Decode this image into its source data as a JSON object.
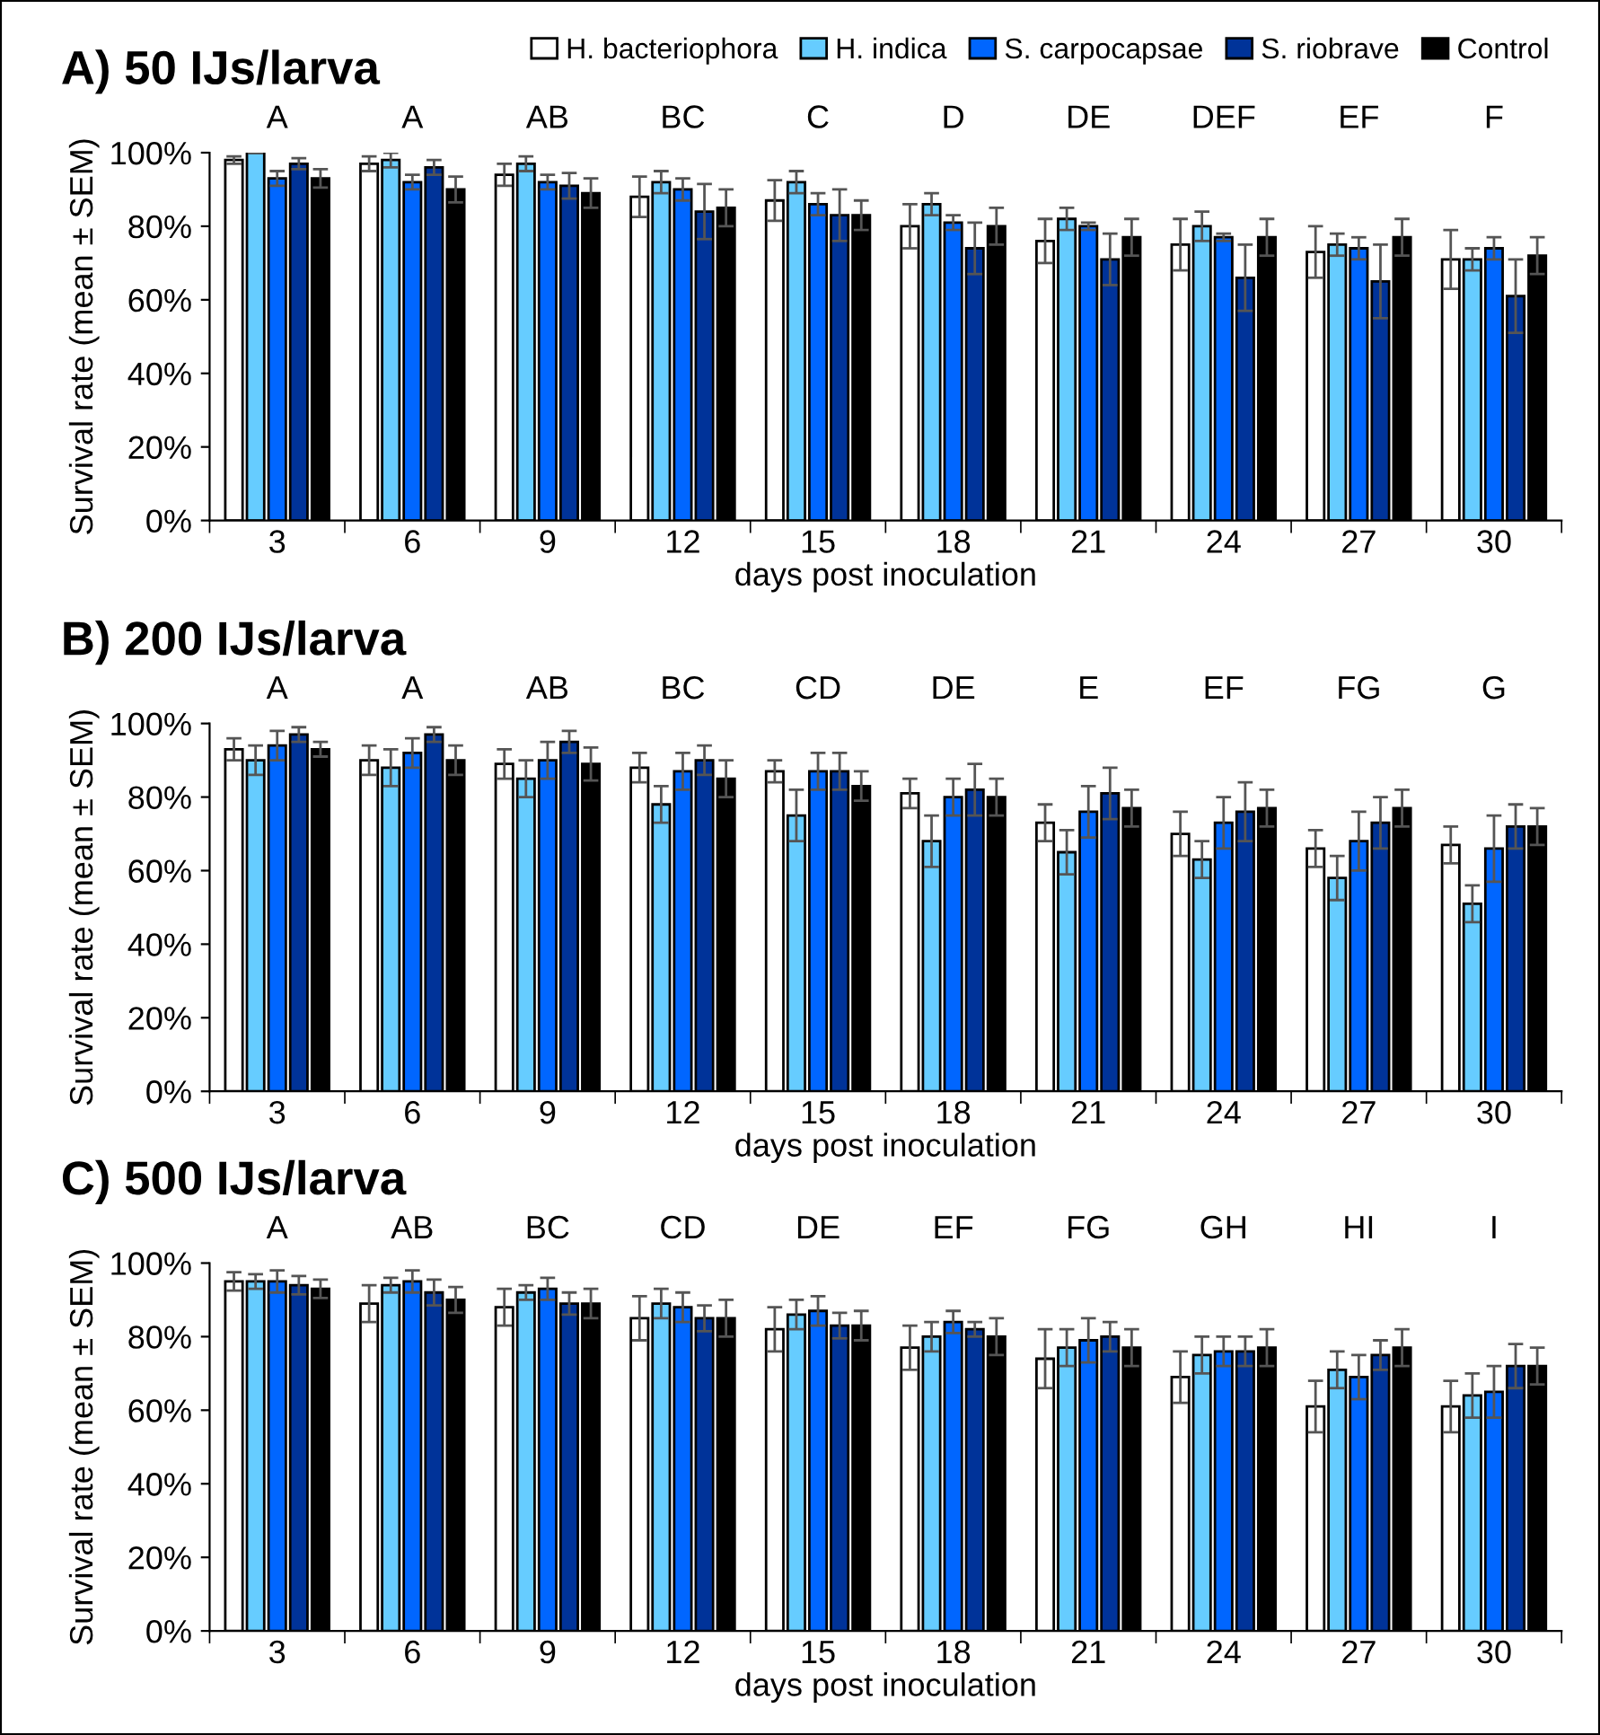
{
  "chart_data": [
    {
      "type": "bar",
      "title": "A) 50 IJs/larva",
      "xlabel": "days post inoculation",
      "ylabel": "Survival rate (mean ± SEM)",
      "legend": "top right",
      "grid": false,
      "categories": [
        "3",
        "6",
        "9",
        "12",
        "15",
        "18",
        "21",
        "24",
        "27",
        "30"
      ],
      "ylim": [
        0,
        100
      ],
      "yticks": [
        {
          "value": 0,
          "label": "0%"
        },
        {
          "value": 20,
          "label": "20%"
        },
        {
          "value": 40,
          "label": "40%"
        },
        {
          "value": 60,
          "label": "60%"
        },
        {
          "value": 80,
          "label": "80%"
        },
        {
          "value": 100,
          "label": "100%"
        }
      ],
      "annotations": [
        "A",
        "A",
        "AB",
        "BC",
        "C",
        "D",
        "DE",
        "DEF",
        "EF",
        "F"
      ],
      "series": [
        {
          "name": "H. bacteriophora",
          "color": "#ffffff",
          "values": [
            98,
            97,
            94,
            88,
            87,
            80,
            76,
            75,
            73,
            71
          ],
          "errors": [
            1,
            2,
            3,
            5.5,
            5.5,
            6,
            6,
            7,
            7,
            8
          ]
        },
        {
          "name": "H. indica",
          "color": "#66ccff",
          "values": [
            100,
            98,
            97,
            92,
            92,
            86,
            82,
            80,
            75,
            71
          ],
          "errors": [
            0,
            2,
            2,
            3,
            3,
            3,
            3,
            4,
            3,
            3
          ]
        },
        {
          "name": "S. carpocapsae",
          "color": "#0066ff",
          "values": [
            93,
            92,
            92,
            90,
            86,
            81,
            80,
            77,
            74,
            74
          ],
          "errors": [
            2,
            2,
            2,
            3,
            3,
            2,
            1,
            1,
            3,
            3
          ]
        },
        {
          "name": "S. riobrave",
          "color": "#003399",
          "values": [
            97,
            96,
            91,
            84,
            83,
            74,
            71,
            66,
            65,
            61
          ],
          "errors": [
            1.5,
            2,
            3.5,
            7.5,
            7,
            7,
            7,
            9,
            10,
            10
          ]
        },
        {
          "name": "Control",
          "color": "#000000",
          "values": [
            93,
            90,
            89,
            85,
            83,
            80,
            77,
            77,
            77,
            72
          ],
          "errors": [
            2.5,
            3.5,
            4,
            5,
            4,
            5,
            5,
            5,
            5,
            5
          ]
        }
      ]
    },
    {
      "type": "bar",
      "title": "B) 200 IJs/larva",
      "xlabel": "days post inoculation",
      "ylabel": "Survival rate (mean ± SEM)",
      "grid": false,
      "categories": [
        "3",
        "6",
        "9",
        "12",
        "15",
        "18",
        "21",
        "24",
        "27",
        "30"
      ],
      "ylim": [
        0,
        100
      ],
      "yticks": [
        {
          "value": 0,
          "label": "0%"
        },
        {
          "value": 20,
          "label": "20%"
        },
        {
          "value": 40,
          "label": "40%"
        },
        {
          "value": 60,
          "label": "60%"
        },
        {
          "value": 80,
          "label": "80%"
        },
        {
          "value": 100,
          "label": "100%"
        }
      ],
      "annotations": [
        "A",
        "A",
        "AB",
        "BC",
        "CD",
        "DE",
        "E",
        "EF",
        "FG",
        "G"
      ],
      "series": [
        {
          "color": "#ffffff",
          "values": [
            93,
            90,
            89,
            88,
            87,
            81,
            73,
            70,
            66,
            67
          ],
          "errors": [
            3,
            4,
            4,
            4,
            3,
            4,
            5,
            6,
            5,
            5
          ]
        },
        {
          "color": "#66ccff",
          "values": [
            90,
            88,
            85,
            78,
            75,
            68,
            65,
            63,
            58,
            51
          ],
          "errors": [
            4,
            5,
            5,
            5,
            7,
            7,
            6,
            5,
            6,
            5
          ]
        },
        {
          "color": "#0066ff",
          "values": [
            94,
            92,
            90,
            87,
            87,
            80,
            76,
            73,
            68,
            66
          ],
          "errors": [
            4,
            4,
            5,
            5,
            5,
            5,
            7,
            7,
            8,
            9
          ]
        },
        {
          "color": "#003399",
          "values": [
            97,
            97,
            95,
            90,
            87,
            82,
            81,
            76,
            73,
            72
          ],
          "errors": [
            2,
            2,
            3,
            4,
            5,
            7,
            7,
            8,
            7,
            6
          ]
        },
        {
          "color": "#000000",
          "values": [
            93,
            90,
            89,
            85,
            83,
            80,
            77,
            77,
            77,
            72
          ],
          "errors": [
            2,
            4,
            4.5,
            5,
            4,
            5,
            5,
            5,
            5,
            5
          ]
        }
      ]
    },
    {
      "type": "bar",
      "title": "C) 500 IJs/larva",
      "xlabel": "days post inoculation",
      "ylabel": "Survival rate (mean ± SEM)",
      "grid": false,
      "categories": [
        "3",
        "6",
        "9",
        "12",
        "15",
        "18",
        "21",
        "24",
        "27",
        "30"
      ],
      "ylim": [
        0,
        100
      ],
      "yticks": [
        {
          "value": 0,
          "label": "0%"
        },
        {
          "value": 20,
          "label": "20%"
        },
        {
          "value": 40,
          "label": "40%"
        },
        {
          "value": 60,
          "label": "60%"
        },
        {
          "value": 80,
          "label": "80%"
        },
        {
          "value": 100,
          "label": "100%"
        }
      ],
      "annotations": [
        "A",
        "AB",
        "BC",
        "CD",
        "DE",
        "EF",
        "FG",
        "GH",
        "HI",
        "I"
      ],
      "series": [
        {
          "color": "#ffffff",
          "values": [
            95,
            89,
            88,
            85,
            82,
            77,
            74,
            69,
            61,
            61
          ],
          "errors": [
            2.5,
            5,
            5,
            6,
            6,
            6,
            8,
            7,
            7,
            7
          ]
        },
        {
          "color": "#66ccff",
          "values": [
            95,
            94,
            92,
            89,
            86,
            80,
            77,
            75,
            71,
            64
          ],
          "errors": [
            2,
            2,
            2,
            4,
            4,
            4,
            5,
            5,
            5,
            6
          ]
        },
        {
          "color": "#0066ff",
          "values": [
            95,
            95,
            93,
            88,
            87,
            84,
            79,
            76,
            69,
            65
          ],
          "errors": [
            3,
            3,
            3,
            4,
            4,
            3,
            6,
            4,
            6,
            7
          ]
        },
        {
          "color": "#003399",
          "values": [
            94,
            92,
            89,
            85,
            83,
            82,
            80,
            76,
            75,
            72
          ],
          "errors": [
            2.5,
            3.5,
            3,
            3.5,
            3.5,
            2,
            4,
            4,
            4,
            6
          ]
        },
        {
          "color": "#000000",
          "values": [
            93,
            90,
            89,
            85,
            83,
            80,
            77,
            77,
            77,
            72
          ],
          "errors": [
            2.5,
            3.5,
            4,
            5,
            4,
            5,
            5,
            5,
            5,
            5
          ]
        }
      ]
    }
  ]
}
